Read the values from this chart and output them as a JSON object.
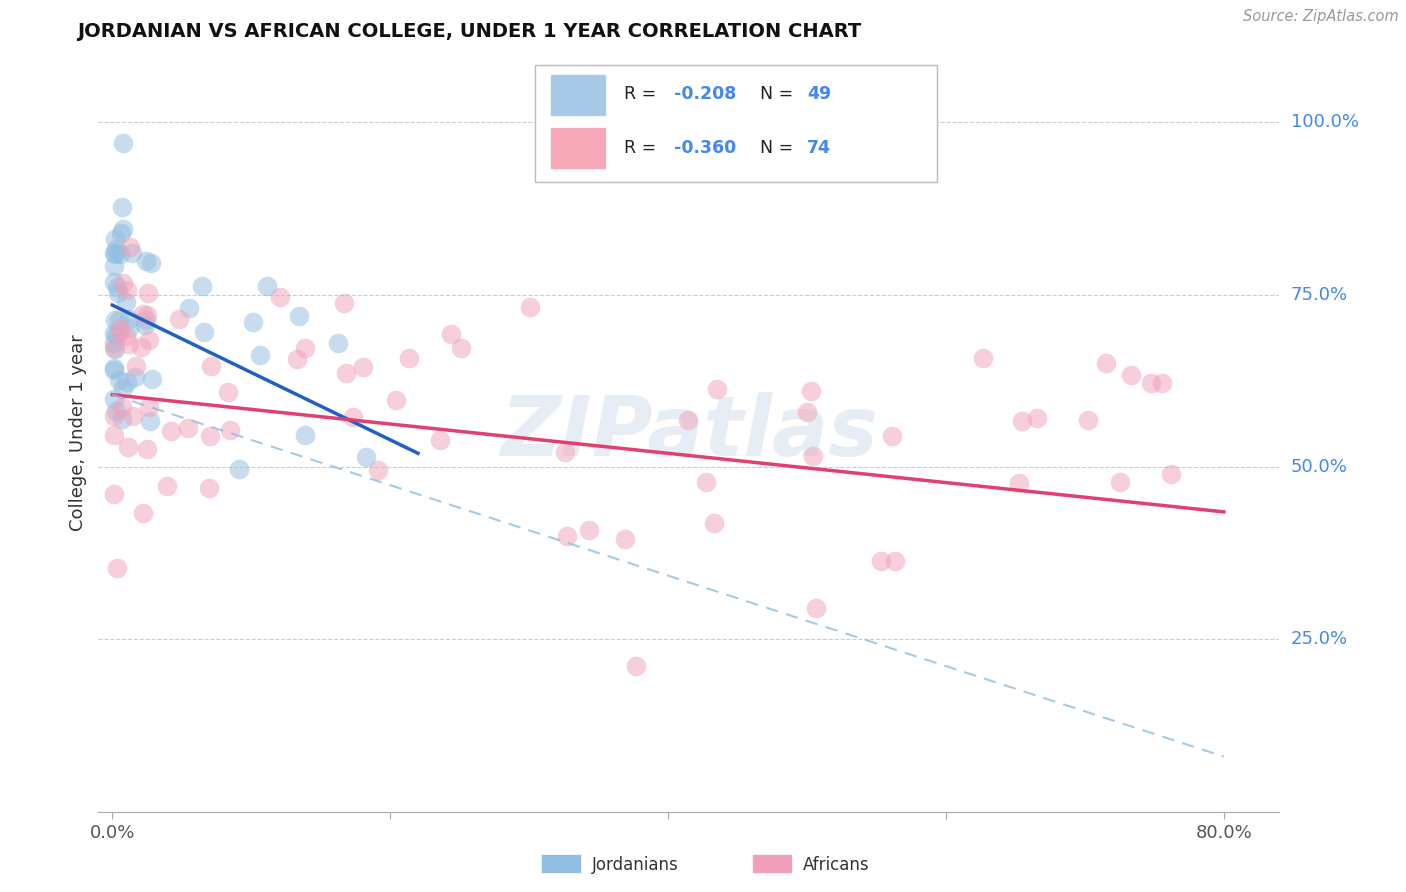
{
  "title": "JORDANIAN VS AFRICAN COLLEGE, UNDER 1 YEAR CORRELATION CHART",
  "source": "Source: ZipAtlas.com",
  "ylabel": "College, Under 1 year",
  "legend_entries": [
    {
      "color": "#a8c8e8",
      "R": "-0.208",
      "N": "49"
    },
    {
      "color": "#f4a8b8",
      "R": "-0.360",
      "N": "74"
    }
  ],
  "blue_line_x": [
    0.0,
    0.22
  ],
  "blue_line_y": [
    0.735,
    0.52
  ],
  "pink_line_x": [
    0.0,
    0.8
  ],
  "pink_line_y": [
    0.605,
    0.435
  ],
  "dashed_line_x": [
    0.0,
    0.8
  ],
  "dashed_line_y": [
    0.605,
    0.08
  ],
  "watermark": "ZIPatlas",
  "bg_color": "#ffffff",
  "blue_dot_color": "#90bde0",
  "pink_dot_color": "#f0a0b8",
  "blue_line_color": "#2060c0",
  "pink_line_color": "#e04070",
  "dashed_line_color": "#90bde0",
  "xlim": [
    -0.01,
    0.84
  ],
  "ylim": [
    0.0,
    1.1
  ],
  "yticks": [
    0.25,
    0.5,
    0.75,
    1.0
  ],
  "ytick_labels": [
    "25.0%",
    "50.0%",
    "75.0%",
    "100.0%"
  ],
  "xtick_positions": [
    0.0,
    0.2,
    0.4,
    0.6,
    0.8
  ],
  "xtick_labels": [
    "0.0%",
    "",
    "",
    "",
    "80.0%"
  ],
  "grid_color": "#cccccc",
  "label_color": "#4488ee",
  "text_color": "#333333"
}
